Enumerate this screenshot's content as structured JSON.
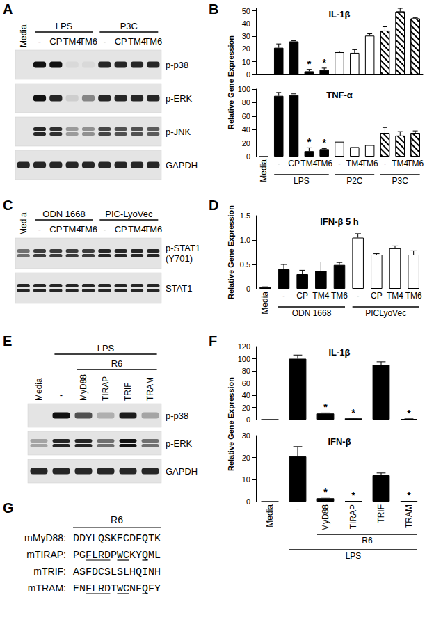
{
  "chart_data": [
    {
      "panel": "B",
      "type": "bar",
      "title": "IL-1β",
      "ylabel": "Relative Gene Expression",
      "categories": [
        "Media",
        "-",
        "CP",
        "TM4",
        "TM6",
        "-",
        "TM4",
        "TM6",
        "-",
        "TM4",
        "TM6"
      ],
      "values": [
        0,
        21,
        26,
        2.5,
        3.5,
        17.5,
        17,
        30.5,
        34.5,
        49.5,
        44
      ],
      "errors": [
        0,
        3,
        0.5,
        1.5,
        1.5,
        0.8,
        2.5,
        1.5,
        3,
        2.5,
        0.5
      ],
      "colors": [
        "#000000",
        "#000000",
        "#000000",
        "#000000",
        "#000000",
        "#ffffff",
        "#ffffff",
        "#ffffff",
        "hatched",
        "hatched",
        "hatched"
      ],
      "annotations": [
        {
          "index": 3,
          "text": "*"
        },
        {
          "index": 4,
          "text": "*"
        }
      ],
      "ylim": [
        0,
        52
      ],
      "yticks": [
        0,
        10,
        20,
        30,
        40,
        50
      ],
      "grid": false,
      "tick_labels": "y"
    },
    {
      "panel": "B",
      "type": "bar",
      "title": "TNF-α",
      "categories": [
        "Media",
        "-",
        "CP",
        "TM4",
        "TM6",
        "-",
        "TM4",
        "TM6",
        "-",
        "TM4",
        "TM6"
      ],
      "values": [
        0,
        90,
        91,
        8,
        11,
        22,
        14,
        17,
        35,
        31,
        35
      ],
      "errors": [
        0,
        5,
        2,
        5,
        1,
        0,
        0,
        0,
        8,
        6,
        3
      ],
      "colors": [
        "#000000",
        "#000000",
        "#000000",
        "#000000",
        "#000000",
        "#ffffff",
        "#ffffff",
        "#ffffff",
        "hatched",
        "hatched",
        "hatched"
      ],
      "annotations": [
        {
          "index": 3,
          "text": "*"
        },
        {
          "index": 4,
          "text": "*"
        }
      ],
      "groups": [
        {
          "label": "LPS",
          "from": 1,
          "to": 4
        },
        {
          "label": "P2C",
          "from": 5,
          "to": 7
        },
        {
          "label": "P3C",
          "from": 8,
          "to": 10
        }
      ],
      "ylim": [
        0,
        100
      ],
      "yticks": [
        0,
        20,
        40,
        60,
        80,
        100
      ],
      "grid": false
    },
    {
      "panel": "D",
      "type": "bar",
      "title": "IFN-β 5 h",
      "ylabel": "Relative Gene Expression",
      "categories": [
        "Media",
        "-",
        "CP",
        "TM4",
        "TM6",
        "-",
        "CP",
        "TM4",
        "TM6"
      ],
      "values": [
        0.03,
        0.4,
        0.3,
        0.37,
        0.49,
        1.05,
        0.7,
        0.83,
        0.7
      ],
      "errors": [
        0.01,
        0.1,
        0.08,
        0.18,
        0.05,
        0.08,
        0.02,
        0.05,
        0.08
      ],
      "colors": [
        "#000000",
        "#000000",
        "#000000",
        "#000000",
        "#000000",
        "#ffffff",
        "#ffffff",
        "#ffffff",
        "#ffffff"
      ],
      "groups": [
        {
          "label": "ODN 1668",
          "from": 1,
          "to": 4
        },
        {
          "label": "PICLyoVec",
          "from": 5,
          "to": 8
        }
      ],
      "ylim": [
        0,
        1.5
      ],
      "yticks": [
        0,
        0.5,
        {
          "value": 1,
          "label": "1.0"
        },
        1.5
      ],
      "grid": false
    },
    {
      "panel": "F",
      "type": "bar",
      "title": "IL-1β",
      "ylabel": "Relative Gene Expression",
      "categories": [
        "Media",
        "-",
        "MyD88",
        "TIRAP",
        "TRIF",
        "TRAM"
      ],
      "values": [
        0,
        100,
        10,
        2,
        90,
        1
      ],
      "errors": [
        0,
        6,
        1,
        0.5,
        5,
        0.3
      ],
      "colors": [
        "#000000",
        "#000000",
        "#000000",
        "#000000",
        "#000000",
        "#000000"
      ],
      "annotations": [
        {
          "index": 2,
          "text": "*"
        },
        {
          "index": 3,
          "text": "*"
        },
        {
          "index": 5,
          "text": "*"
        }
      ],
      "ylim": [
        0,
        120
      ],
      "yticks": [
        0,
        20,
        40,
        60,
        80,
        100,
        120
      ],
      "grid": false,
      "tick_labels": "y"
    },
    {
      "panel": "F",
      "type": "bar",
      "title": "IFN-β",
      "categories": [
        "Media",
        "-",
        "MyD88",
        "TIRAP",
        "TRIF",
        "TRAM"
      ],
      "values": [
        0,
        20.5,
        1.5,
        0.3,
        12,
        0.2
      ],
      "errors": [
        0,
        4.5,
        0.3,
        0,
        1,
        0
      ],
      "colors": [
        "#000000",
        "#000000",
        "#000000",
        "#000000",
        "#000000",
        "#000000"
      ],
      "annotations": [
        {
          "index": 2,
          "text": "*"
        },
        {
          "index": 3,
          "text": "*"
        },
        {
          "index": 5,
          "text": "*"
        }
      ],
      "groups": [
        {
          "label": "R6",
          "from": 2,
          "to": 5
        },
        {
          "label": "LPS",
          "from": 1,
          "to": 5
        }
      ],
      "ylim": [
        0,
        30
      ],
      "yticks": [
        0,
        10,
        20,
        30
      ],
      "grid": false
    }
  ],
  "blots": [
    {
      "panel": "A",
      "columns": [
        "Media",
        "-",
        "CP",
        "TM4",
        "TM6",
        "-",
        "CP",
        "TM4",
        "TM6"
      ],
      "groups": [
        {
          "label": "LPS",
          "from": 1,
          "to": 4
        },
        {
          "label": "P3C",
          "from": 5,
          "to": 8
        }
      ],
      "rows": [
        {
          "label": "p-p38",
          "bands": [
            0,
            1,
            1,
            0.05,
            0.05,
            0.9,
            0.9,
            0.9,
            0.9
          ]
        },
        {
          "label": "p-ERK",
          "bands": [
            0,
            1,
            0.9,
            0.1,
            0.45,
            0.9,
            0.9,
            0.9,
            0.9
          ]
        },
        {
          "label": "p-JNK",
          "doublet": true,
          "bands": [
            0,
            0.9,
            0.85,
            0.35,
            0.4,
            0.75,
            0.7,
            0.7,
            0.65
          ]
        },
        {
          "label": "GAPDH",
          "bands": [
            0.9,
            0.9,
            0.9,
            0.9,
            0.9,
            0.9,
            0.9,
            0.9,
            0.9
          ]
        }
      ]
    },
    {
      "panel": "C",
      "columns": [
        "Media",
        "-",
        "CP",
        "TM4",
        "TM6",
        "-",
        "CP",
        "TM4",
        "TM6"
      ],
      "groups": [
        {
          "label": "ODN 1668",
          "from": 1,
          "to": 4
        },
        {
          "label": "PIC-LyoVec",
          "from": 5,
          "to": 8
        }
      ],
      "rows": [
        {
          "label": "p-STAT1 (Y701)",
          "doublet": true,
          "bands": [
            0.55,
            0.8,
            0.8,
            0.8,
            0.8,
            0.9,
            0.9,
            0.9,
            0.9
          ]
        },
        {
          "label": "STAT1",
          "doublet": true,
          "bands": [
            0.9,
            0.9,
            0.9,
            0.9,
            0.9,
            0.9,
            0.9,
            0.9,
            0.9
          ]
        }
      ]
    },
    {
      "panel": "E",
      "columns": [
        "Media",
        "-",
        "MyD88",
        "TIRAP",
        "TRIF",
        "TRAM"
      ],
      "groups": [
        {
          "label": "R6",
          "from": 2,
          "to": 5
        },
        {
          "label": "LPS",
          "from": 1,
          "to": 5
        }
      ],
      "rows": [
        {
          "label": "p-p38",
          "bands": [
            0,
            1,
            0.7,
            0.25,
            0.95,
            0.3
          ]
        },
        {
          "label": "p-ERK",
          "doublet": true,
          "bands": [
            0.3,
            0.9,
            0.9,
            0.55,
            1,
            0.55
          ]
        },
        {
          "label": "GAPDH",
          "bands": [
            0.9,
            0.9,
            0.9,
            0.9,
            0.9,
            0.9
          ]
        }
      ]
    }
  ],
  "sequences": {
    "panel": "G",
    "title": "R6",
    "rows": [
      {
        "label": "mMyD88:",
        "segments": [
          {
            "text": "DDYLQSKECDFQTK"
          }
        ]
      },
      {
        "label": "mTIRAP:",
        "segments": [
          {
            "text": "PG"
          },
          {
            "text": "FLRD",
            "underline": true
          },
          {
            "text": "P"
          },
          {
            "text": "WC",
            "underline": true
          },
          {
            "text": "KY"
          },
          {
            "text": "Q",
            "underline": true
          },
          {
            "text": "ML"
          }
        ]
      },
      {
        "label": "mTRIF:",
        "segments": [
          {
            "text": "ASFDCSLSLHQINH"
          }
        ]
      },
      {
        "label": "mTRAM:",
        "segments": [
          {
            "text": "EN"
          },
          {
            "text": "FLRD",
            "underline": true
          },
          {
            "text": "T"
          },
          {
            "text": "WC",
            "underline": true
          },
          {
            "text": "NF"
          },
          {
            "text": "Q",
            "underline": true
          },
          {
            "text": "FY"
          }
        ]
      }
    ]
  }
}
